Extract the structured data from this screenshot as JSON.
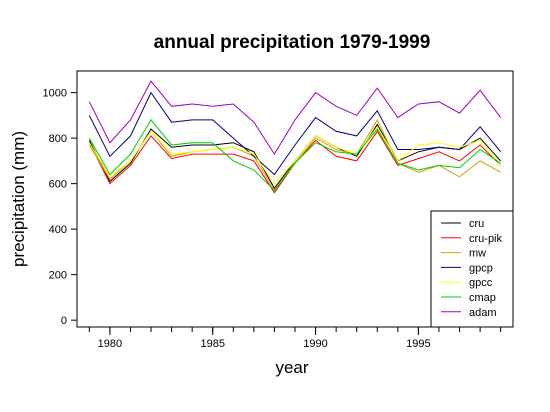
{
  "chart_data": {
    "type": "line",
    "title": "annual precipitation 1979-1999",
    "xlabel": "year",
    "ylabel": "precipitation (mm)",
    "x": [
      1979,
      1980,
      1981,
      1982,
      1983,
      1984,
      1985,
      1986,
      1987,
      1988,
      1989,
      1990,
      1991,
      1992,
      1993,
      1994,
      1995,
      1996,
      1997,
      1998,
      1999
    ],
    "xlim": [
      1978.4,
      1999.6
    ],
    "ylim": [
      -30,
      1095
    ],
    "x_ticks": [
      1980,
      1985,
      1990,
      1995
    ],
    "x_tick_labels": [
      "1980",
      "1985",
      "1990",
      "1995"
    ],
    "y_ticks": [
      0,
      200,
      400,
      600,
      800,
      1000
    ],
    "y_tick_labels": [
      "0",
      "200",
      "400",
      "600",
      "800",
      "1000"
    ],
    "grid": false,
    "legend_position": "bottom-right",
    "series": [
      {
        "name": "cru",
        "color": "#000000",
        "values": [
          790,
          610,
          690,
          840,
          760,
          770,
          770,
          780,
          740,
          580,
          700,
          810,
          760,
          720,
          860,
          700,
          740,
          760,
          750,
          800,
          700
        ]
      },
      {
        "name": "cru-pik",
        "color": "#ff0000",
        "values": [
          780,
          600,
          680,
          810,
          710,
          730,
          730,
          730,
          700,
          560,
          690,
          790,
          720,
          700,
          830,
          680,
          710,
          740,
          700,
          770,
          680
        ]
      },
      {
        "name": "mw",
        "color": "#d4a000",
        "values": [
          770,
          620,
          700,
          830,
          720,
          740,
          750,
          760,
          720,
          570,
          690,
          800,
          750,
          730,
          880,
          690,
          650,
          680,
          630,
          700,
          650
        ]
      },
      {
        "name": "gpcp",
        "color": "#000080",
        "values": [
          900,
          720,
          810,
          1000,
          870,
          880,
          880,
          800,
          720,
          640,
          770,
          890,
          830,
          810,
          920,
          750,
          750,
          760,
          750,
          850,
          740
        ]
      },
      {
        "name": "gpcc",
        "color": "#ffff00",
        "values": [
          780,
          630,
          700,
          830,
          730,
          740,
          750,
          760,
          730,
          600,
          700,
          810,
          760,
          730,
          850,
          700,
          770,
          780,
          760,
          790,
          680
        ]
      },
      {
        "name": "cmap",
        "color": "#00cc00",
        "values": [
          800,
          640,
          730,
          880,
          770,
          780,
          780,
          700,
          660,
          570,
          690,
          780,
          740,
          730,
          840,
          690,
          660,
          680,
          670,
          750,
          690
        ]
      },
      {
        "name": "adam",
        "color": "#9900cc",
        "values": [
          960,
          780,
          880,
          1050,
          940,
          950,
          940,
          950,
          870,
          730,
          880,
          1000,
          940,
          900,
          1020,
          890,
          950,
          960,
          910,
          1010,
          890
        ]
      }
    ]
  }
}
